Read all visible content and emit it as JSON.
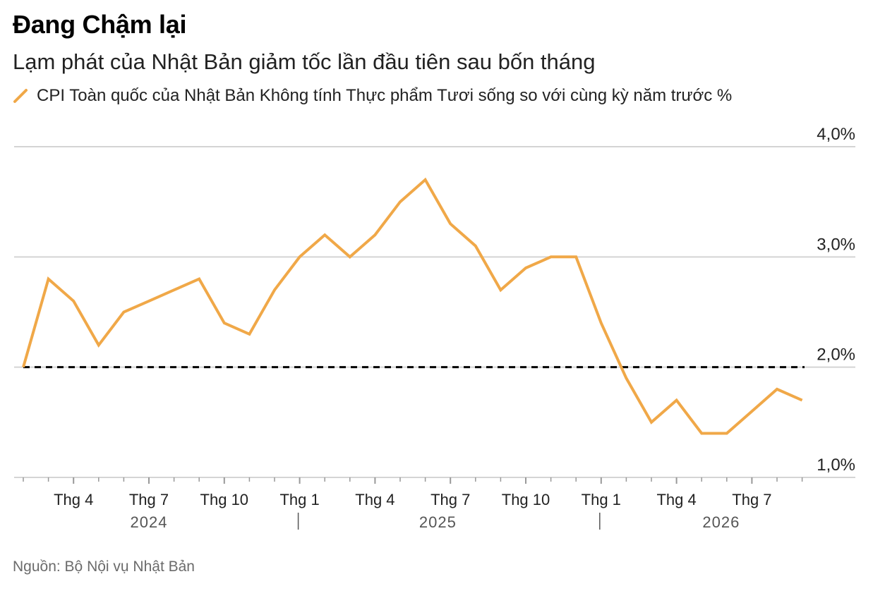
{
  "header": {
    "title": "Đang Chậm lại",
    "subtitle": "Lạm phát của Nhật Bản giảm tốc lần đầu tiên sau bốn tháng"
  },
  "legend": {
    "label": "CPI Toàn quốc của Nhật Bản Không tính Thực phẩm Tươi sống so với cùng kỳ năm trước %"
  },
  "colors": {
    "line": "#F0A848",
    "grid": "#d4d4d4",
    "reference": "#000000"
  },
  "footer": {
    "source": "Nguồn: Bộ Nội vụ Nhật Bản"
  },
  "chart_data": {
    "type": "line",
    "title": "Đang Chậm lại",
    "subtitle": "Lạm phát của Nhật Bản giảm tốc lần đầu tiên sau bốn tháng",
    "x": [
      "2024-02",
      "2024-03",
      "2024-04",
      "2024-05",
      "2024-06",
      "2024-07",
      "2024-08",
      "2024-09",
      "2024-10",
      "2024-11",
      "2024-12",
      "2025-01",
      "2025-02",
      "2025-03",
      "2025-04",
      "2025-05",
      "2025-06",
      "2025-07",
      "2025-08",
      "2025-09",
      "2025-10",
      "2025-11",
      "2025-12",
      "2026-01",
      "2026-02",
      "2026-03",
      "2026-04",
      "2026-05",
      "2026-06",
      "2026-07",
      "2026-08",
      "2026-09"
    ],
    "series": [
      {
        "name": "CPI Toàn quốc của Nhật Bản Không tính Thực phẩm Tươi sống so với cùng kỳ năm trước %",
        "values": [
          2.0,
          2.8,
          2.6,
          2.2,
          2.5,
          2.6,
          2.7,
          2.8,
          2.4,
          2.3,
          2.7,
          3.0,
          3.2,
          3.0,
          3.2,
          3.5,
          3.7,
          3.3,
          3.1,
          2.7,
          2.9,
          3.0,
          3.0,
          2.4,
          1.9,
          1.5,
          1.7,
          1.4,
          1.4,
          1.6,
          1.8,
          1.7
        ]
      }
    ],
    "reference_line": {
      "value": 2.0,
      "style": "dashed"
    },
    "ylim": [
      1.0,
      4.0
    ],
    "y_ticks": [
      {
        "value": 1.0,
        "label": "1,0%"
      },
      {
        "value": 2.0,
        "label": "2,0%"
      },
      {
        "value": 3.0,
        "label": "3,0%"
      },
      {
        "value": 4.0,
        "label": "4,0%"
      }
    ],
    "x_tick_labels": [
      {
        "x": "2024-04",
        "label": "Thg 4"
      },
      {
        "x": "2024-07",
        "label": "Thg 7"
      },
      {
        "x": "2024-10",
        "label": "Thg 10"
      },
      {
        "x": "2025-01",
        "label": "Thg 1"
      },
      {
        "x": "2025-04",
        "label": "Thg 4"
      },
      {
        "x": "2025-07",
        "label": "Thg 7"
      },
      {
        "x": "2025-10",
        "label": "Thg 10"
      },
      {
        "x": "2026-01",
        "label": "Thg 1"
      },
      {
        "x": "2026-04",
        "label": "Thg 4"
      },
      {
        "x": "2026-07",
        "label": "Thg 7"
      }
    ],
    "year_labels": [
      {
        "label": "2024",
        "from": "2024-02",
        "to": "2024-12"
      },
      {
        "label": "2025",
        "from": "2025-01",
        "to": "2025-12"
      },
      {
        "label": "2026",
        "from": "2026-01",
        "to": "2026-09"
      }
    ],
    "grid": true,
    "y_axis_position": "right",
    "legend_position": "top-left"
  }
}
